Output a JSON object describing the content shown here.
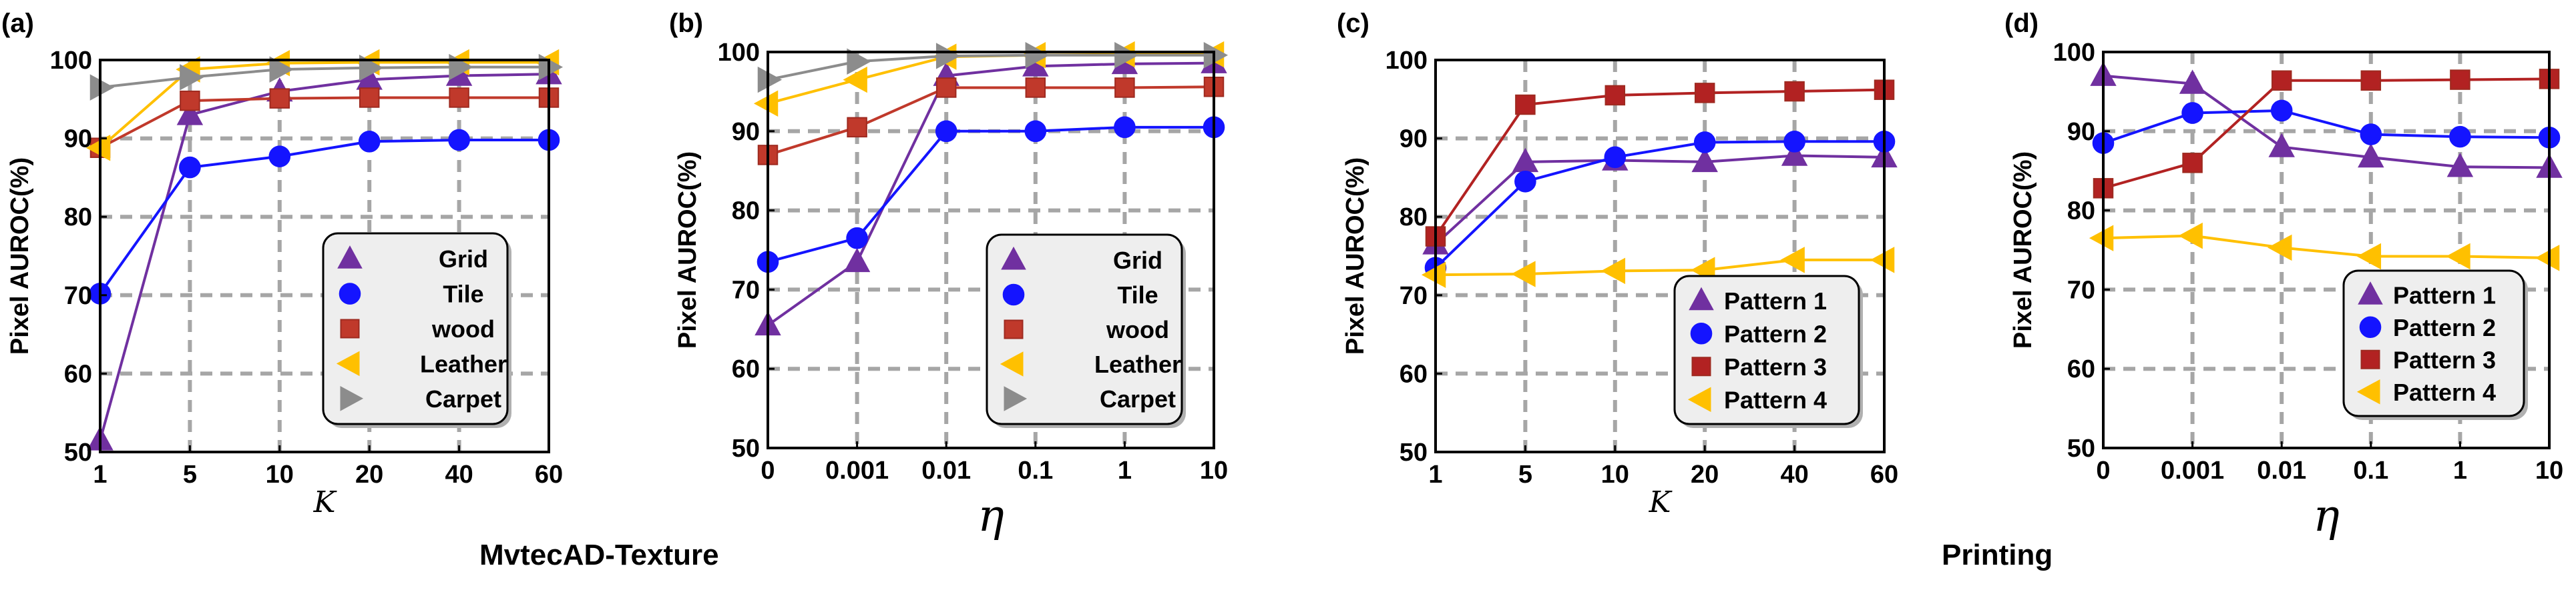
{
  "group_titles": [
    "MvtecAD-Texture",
    "Printing"
  ],
  "colors": {
    "grid": "#a6a6a6",
    "purple": "#7030a0",
    "blue": "#1414ff",
    "red": "#c0392b",
    "red_edge": "#9e2a20",
    "yellow": "#ffc000",
    "gray": "#8c8c8c",
    "dark_red": "#b22222",
    "legend_bg": "#eeeeee"
  },
  "chart_data": [
    {
      "panel": "(a)",
      "type": "line",
      "xlabel": "K",
      "ylabel": "Pixel AUROC(%)",
      "categories": [
        "1",
        "5",
        "10",
        "20",
        "40",
        "60"
      ],
      "ylim": [
        50,
        100
      ],
      "yticks": [
        50,
        60,
        70,
        80,
        90,
        100
      ],
      "grid": true,
      "legend_position": "lower-right",
      "series": [
        {
          "name": "Grid",
          "marker": "triangle-up",
          "color": "#7030a0",
          "values": [
            51.5,
            93.0,
            96.0,
            97.5,
            98.0,
            98.2
          ]
        },
        {
          "name": "Tile",
          "marker": "circle",
          "color": "#1414ff",
          "values": [
            70.2,
            86.3,
            87.7,
            89.6,
            89.8,
            89.8
          ]
        },
        {
          "name": "wood",
          "marker": "square",
          "color": "#c0392b",
          "values": [
            88.8,
            94.8,
            95.1,
            95.2,
            95.2,
            95.2
          ]
        },
        {
          "name": "Leather",
          "marker": "triangle-left",
          "color": "#ffc000",
          "values": [
            88.8,
            98.8,
            99.6,
            99.7,
            99.7,
            99.7
          ]
        },
        {
          "name": "Carpet",
          "marker": "triangle-right",
          "color": "#8c8c8c",
          "values": [
            96.5,
            97.8,
            98.8,
            99.0,
            99.1,
            99.1
          ]
        }
      ]
    },
    {
      "panel": "(b)",
      "type": "line",
      "xlabel": "η",
      "ylabel": "Pixel AUROC(%)",
      "categories": [
        "0",
        "0.001",
        "0.01",
        "0.1",
        "1",
        "10"
      ],
      "ylim": [
        50,
        100
      ],
      "yticks": [
        50,
        60,
        70,
        80,
        90,
        100
      ],
      "grid": true,
      "legend_position": "lower-right",
      "series": [
        {
          "name": "Grid",
          "marker": "triangle-up",
          "color": "#7030a0",
          "values": [
            65.5,
            73.5,
            97.0,
            98.2,
            98.5,
            98.6
          ]
        },
        {
          "name": "Tile",
          "marker": "circle",
          "color": "#1414ff",
          "values": [
            73.5,
            76.5,
            90.0,
            90.0,
            90.5,
            90.5
          ]
        },
        {
          "name": "wood",
          "marker": "square",
          "color": "#c0392b",
          "values": [
            87.0,
            90.5,
            95.5,
            95.5,
            95.5,
            95.6
          ]
        },
        {
          "name": "Leather",
          "marker": "triangle-left",
          "color": "#ffc000",
          "values": [
            93.5,
            96.5,
            99.4,
            99.6,
            99.7,
            99.7
          ]
        },
        {
          "name": "Carpet",
          "marker": "triangle-right",
          "color": "#8c8c8c",
          "values": [
            96.5,
            98.8,
            99.5,
            99.6,
            99.6,
            99.6
          ]
        }
      ]
    },
    {
      "panel": "(c)",
      "type": "line",
      "xlabel": "K",
      "ylabel": "Pixel AUROC(%)",
      "categories": [
        "1",
        "5",
        "10",
        "20",
        "40",
        "60"
      ],
      "ylim": [
        50,
        100
      ],
      "yticks": [
        50,
        60,
        70,
        80,
        90,
        100
      ],
      "grid": true,
      "legend_position": "lower-right",
      "series": [
        {
          "name": "Pattern 1",
          "marker": "triangle-up",
          "color": "#7030a0",
          "values": [
            76.5,
            87.0,
            87.2,
            87.0,
            87.8,
            87.6
          ]
        },
        {
          "name": "Pattern 2",
          "marker": "circle",
          "color": "#1414ff",
          "values": [
            73.5,
            84.5,
            87.6,
            89.5,
            89.6,
            89.6
          ]
        },
        {
          "name": "Pattern 3",
          "marker": "square",
          "color": "#b22222",
          "values": [
            77.5,
            94.3,
            95.5,
            95.8,
            96.0,
            96.2
          ]
        },
        {
          "name": "Pattern 4",
          "marker": "triangle-left",
          "color": "#ffc000",
          "values": [
            72.6,
            72.7,
            73.1,
            73.2,
            74.5,
            74.5
          ]
        }
      ]
    },
    {
      "panel": "(d)",
      "type": "line",
      "xlabel": "η",
      "ylabel": "Pixel AUROC(%)",
      "categories": [
        "0",
        "0.001",
        "0.01",
        "0.1",
        "1",
        "10"
      ],
      "ylim": [
        50,
        100
      ],
      "yticks": [
        50,
        60,
        70,
        80,
        90,
        100
      ],
      "grid": true,
      "legend_position": "lower-right",
      "series": [
        {
          "name": "Pattern 1",
          "marker": "triangle-up",
          "color": "#7030a0",
          "values": [
            97.0,
            96.0,
            88.0,
            86.7,
            85.5,
            85.4
          ]
        },
        {
          "name": "Pattern 2",
          "marker": "circle",
          "color": "#1414ff",
          "values": [
            88.5,
            92.3,
            92.6,
            89.6,
            89.3,
            89.2
          ]
        },
        {
          "name": "Pattern 3",
          "marker": "square",
          "color": "#b22222",
          "values": [
            82.8,
            86.0,
            96.4,
            96.4,
            96.5,
            96.6
          ]
        },
        {
          "name": "Pattern 4",
          "marker": "triangle-left",
          "color": "#ffc000",
          "values": [
            76.5,
            76.8,
            75.3,
            74.2,
            74.2,
            74.0
          ]
        }
      ]
    }
  ]
}
